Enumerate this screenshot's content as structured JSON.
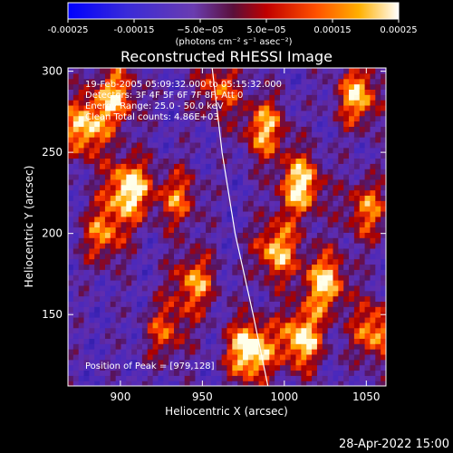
{
  "chart_data": {
    "type": "heatmap",
    "title": "Reconstructed RHESSI Image",
    "xlabel": "Heliocentric X (arcsec)",
    "ylabel": "Heliocentric Y (arcsec)",
    "xlim": [
      868,
      1062
    ],
    "ylim": [
      106,
      302
    ],
    "xticks": [
      900,
      950,
      1000,
      1050
    ],
    "yticks": [
      150,
      200,
      250,
      300
    ],
    "colorbar": {
      "range": [
        -0.00025,
        0.00025
      ],
      "ticks": [
        "-0.00025",
        "-0.00015",
        "−5.0e−05",
        "5.0e−05",
        "0.00015",
        "0.00025"
      ],
      "unit_label": "(photons cm⁻² s⁻¹ asec⁻²)"
    },
    "annotations": [
      "19-Feb-2005 05:09:32.000 to 05:15:32.000",
      "Detectors: 3F 4F 5F 6F 7F 8F, Att 0",
      "Energy Range: 25.0 - 50.0 keV",
      "Clean     Total counts: 4.86E+03"
    ],
    "peak_label": "Position of Peak = [979,128]",
    "peak": [
      979,
      128
    ],
    "limb_points": [
      [
        956,
        302
      ],
      [
        962,
        250
      ],
      [
        970,
        200
      ],
      [
        981,
        150
      ],
      [
        990,
        106
      ]
    ],
    "hotspots": [
      {
        "x": 878,
        "y": 265,
        "v": 0.8
      },
      {
        "x": 897,
        "y": 285,
        "v": 0.7
      },
      {
        "x": 905,
        "y": 228,
        "v": 0.9
      },
      {
        "x": 890,
        "y": 200,
        "v": 0.6
      },
      {
        "x": 935,
        "y": 222,
        "v": 0.55
      },
      {
        "x": 945,
        "y": 170,
        "v": 0.65
      },
      {
        "x": 928,
        "y": 140,
        "v": 0.5
      },
      {
        "x": 988,
        "y": 265,
        "v": 0.7
      },
      {
        "x": 1010,
        "y": 230,
        "v": 0.85
      },
      {
        "x": 995,
        "y": 190,
        "v": 0.75
      },
      {
        "x": 1025,
        "y": 170,
        "v": 0.8
      },
      {
        "x": 1010,
        "y": 135,
        "v": 0.85
      },
      {
        "x": 979,
        "y": 128,
        "v": 1.0
      },
      {
        "x": 1045,
        "y": 285,
        "v": 0.75
      },
      {
        "x": 1050,
        "y": 215,
        "v": 0.6
      },
      {
        "x": 1055,
        "y": 140,
        "v": 0.7
      },
      {
        "x": 960,
        "y": 290,
        "v": 0.55
      }
    ]
  },
  "timestamp": "28-Apr-2022 15:00"
}
